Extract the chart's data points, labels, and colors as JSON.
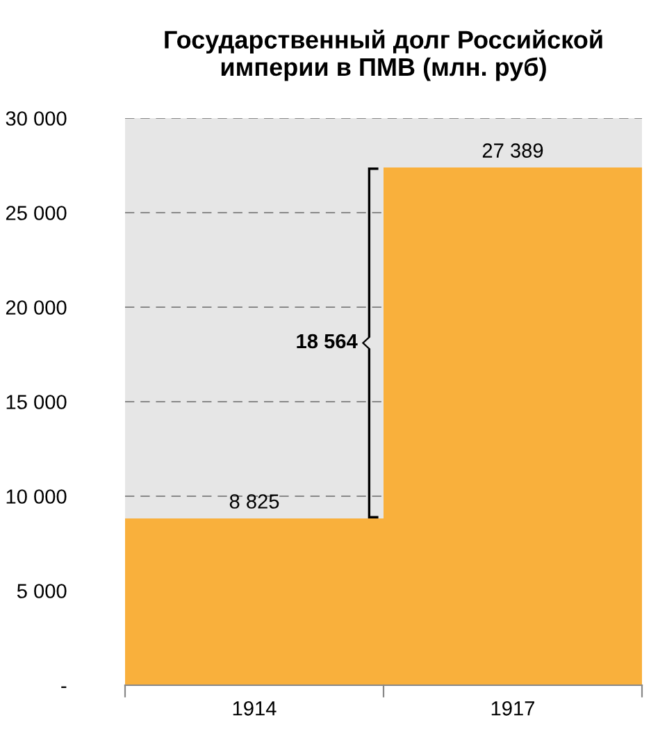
{
  "chart_data": {
    "type": "bar",
    "title": "Государственный долг Российской\nимперии в ПМВ (млн. руб)",
    "categories": [
      "1914",
      "1917"
    ],
    "series": [
      {
        "color": "#f9b03c",
        "values": [
          8825,
          27389
        ]
      }
    ],
    "value_labels": [
      "8 825",
      "27 389"
    ],
    "annotations": [
      "18 564"
    ],
    "ylim": [
      0,
      30000
    ],
    "yticks": [
      {
        "value": 0,
        "label": "-"
      },
      {
        "value": 5000,
        "label": "5 000"
      },
      {
        "value": 10000,
        "label": "10 000"
      },
      {
        "value": 15000,
        "label": "15 000"
      },
      {
        "value": 20000,
        "label": "20 000"
      },
      {
        "value": 25000,
        "label": "25 000"
      },
      {
        "value": 30000,
        "label": "30 000"
      }
    ],
    "grid": "y",
    "legend": false
  }
}
